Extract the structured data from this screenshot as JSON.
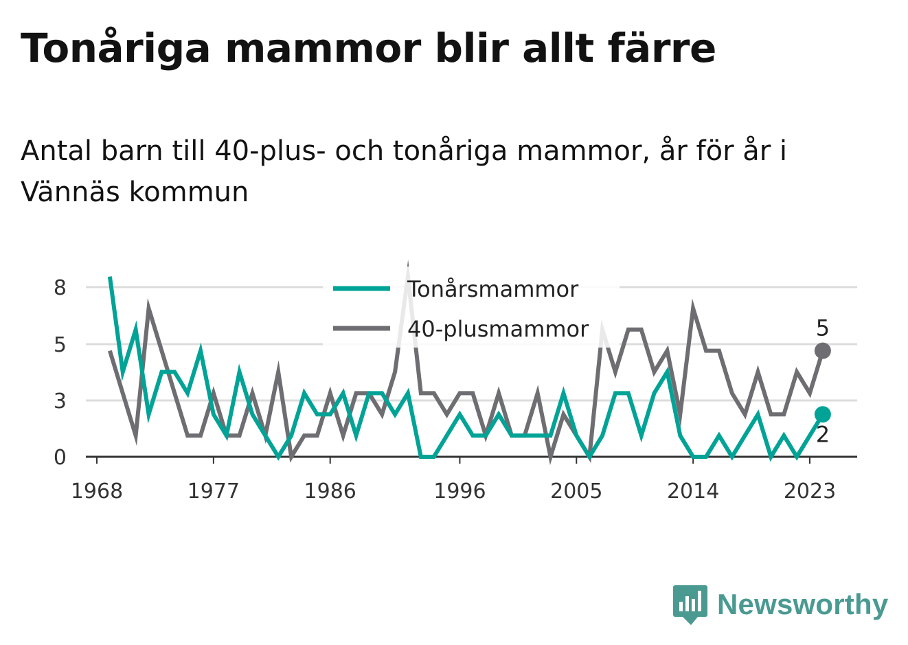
{
  "title": "Tonåriga mammor blir allt färre",
  "subtitle": "Antal barn till 40-plus- och tonåriga mammor, år för år i Vännäs kommun",
  "brand": {
    "name": "Newsworthy",
    "color": "#4a9a92",
    "icon": "bar-chart-speech-bubble-icon"
  },
  "chart_data": {
    "type": "line",
    "x": [
      1969,
      1970,
      1971,
      1972,
      1973,
      1974,
      1975,
      1976,
      1977,
      1978,
      1979,
      1980,
      1981,
      1982,
      1983,
      1984,
      1985,
      1986,
      1987,
      1988,
      1989,
      1990,
      1991,
      1992,
      1993,
      1994,
      1995,
      1996,
      1997,
      1998,
      1999,
      2000,
      2001,
      2002,
      2003,
      2004,
      2005,
      2006,
      2007,
      2008,
      2009,
      2010,
      2011,
      2012,
      2013,
      2014,
      2015,
      2016,
      2017,
      2018,
      2019,
      2020,
      2021,
      2022,
      2023,
      2024
    ],
    "series": [
      {
        "name": "Tonårsmammor",
        "color": "#00a396",
        "values": [
          8.5,
          4,
          6,
          2,
          4,
          4,
          3,
          5,
          2,
          1,
          4,
          2,
          1,
          0,
          1,
          3,
          2,
          2,
          3,
          1,
          3,
          3,
          2,
          3,
          0,
          0,
          1,
          2,
          1,
          1,
          2,
          1,
          1,
          1,
          1,
          3,
          1,
          0,
          1,
          3,
          3,
          1,
          3,
          4,
          1,
          0,
          0,
          1,
          0,
          1,
          2,
          0,
          1,
          0,
          1,
          2
        ]
      },
      {
        "name": "40-plusmammor",
        "color": "#6e6e72",
        "values": [
          5,
          3,
          1,
          7,
          5,
          3,
          1,
          1,
          3,
          1,
          1,
          3,
          1,
          4,
          0,
          1,
          1,
          3,
          1,
          3,
          3,
          2,
          4,
          8.5,
          3,
          3,
          2,
          3,
          3,
          1,
          3,
          1,
          1,
          3,
          0,
          2,
          1,
          0,
          6,
          4,
          6,
          6,
          4,
          5,
          2,
          7,
          5,
          5,
          3,
          2,
          4,
          2,
          2,
          4,
          3,
          5
        ]
      }
    ],
    "x_ticks": [
      1968,
      1977,
      1986,
      1996,
      2005,
      2014,
      2023
    ],
    "y_ticks": [
      0,
      3,
      5,
      8
    ],
    "xlim": [
      1968,
      2027
    ],
    "ylim": [
      0,
      8
    ],
    "grid": true,
    "legend_position": "top-center",
    "end_labels": [
      {
        "series": "40-plusmammor",
        "value": "5"
      },
      {
        "series": "Tonårsmammor",
        "value": "2"
      }
    ]
  }
}
